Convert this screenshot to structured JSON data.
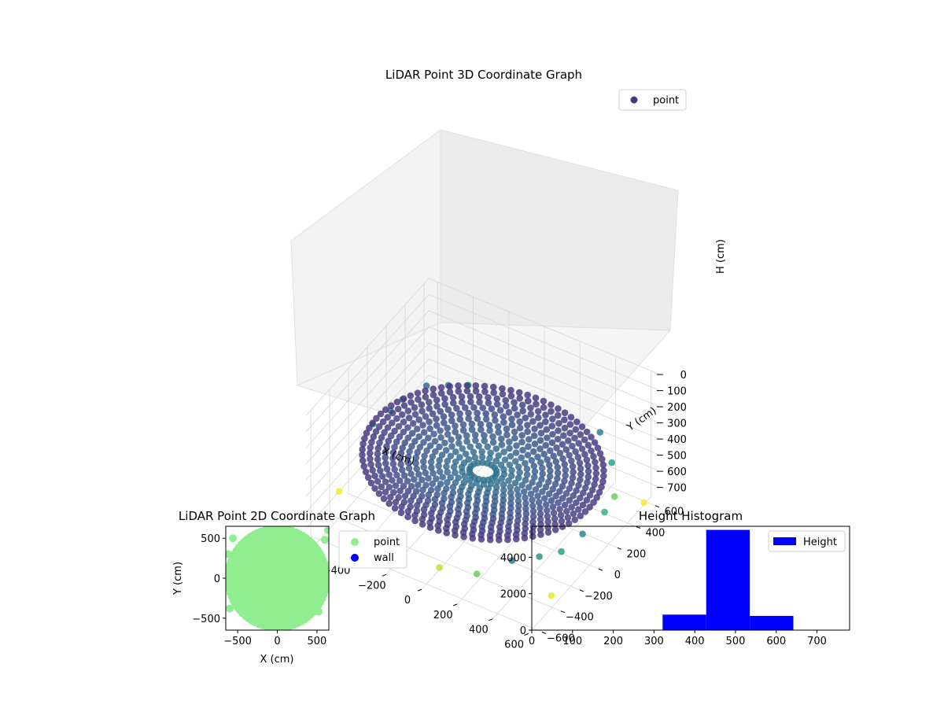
{
  "chart_data": [
    {
      "type": "scatter3d",
      "title": "LiDAR Point 3D Coordinate Graph",
      "xlabel": "X (cm)",
      "ylabel": "Y (cm)",
      "zlabel": "H (cm)",
      "xlim": [
        -650,
        650
      ],
      "ylim": [
        -650,
        650
      ],
      "zlim": [
        0,
        780
      ],
      "z_inverted": true,
      "xticks": [
        -600,
        -400,
        -200,
        0,
        200,
        400,
        600
      ],
      "yticks": [
        -600,
        -400,
        -200,
        0,
        200,
        400,
        600
      ],
      "zticks": [
        0,
        100,
        200,
        300,
        400,
        500,
        600,
        700
      ],
      "legend": {
        "entries": [
          "point"
        ],
        "placement": "upper-right"
      },
      "colormap": "viridis",
      "grid": true,
      "series": [
        {
          "name": "point",
          "ring": {
            "radius_outer": 600,
            "radius_inner_min": 60,
            "height_outer": 420,
            "height_center": 480
          },
          "outliers": [
            {
              "x": -640,
              "y": 40,
              "h": 500
            },
            {
              "x": -600,
              "y": 150,
              "h": 470
            },
            {
              "x": -580,
              "y": 240,
              "h": 450
            },
            {
              "x": -520,
              "y": 380,
              "h": 430
            },
            {
              "x": -450,
              "y": 480,
              "h": 460
            },
            {
              "x": -380,
              "y": 560,
              "h": 480
            },
            {
              "x": 460,
              "y": -560,
              "h": 450
            },
            {
              "x": 540,
              "y": -420,
              "h": 480
            },
            {
              "x": 600,
              "y": -300,
              "h": 500
            },
            {
              "x": 640,
              "y": -150,
              "h": 470
            },
            {
              "x": 620,
              "y": 120,
              "h": 520
            },
            {
              "x": 580,
              "y": 300,
              "h": 560
            },
            {
              "x": 480,
              "y": 460,
              "h": 500
            },
            {
              "x": 350,
              "y": 580,
              "h": 450
            },
            {
              "x": -250,
              "y": -640,
              "h": 560
            },
            {
              "x": 100,
              "y": -650,
              "h": 600
            },
            {
              "x": 640,
              "y": 500,
              "h": 700
            },
            {
              "x": -650,
              "y": -300,
              "h": 700
            },
            {
              "x": 300,
              "y": -630,
              "h": 560
            },
            {
              "x": 650,
              "y": -500,
              "h": 620
            }
          ]
        }
      ]
    },
    {
      "type": "scatter",
      "title": "LiDAR Point 2D Coordinate Graph",
      "xlabel": "X (cm)",
      "ylabel": "Y (cm)",
      "xlim": [
        -650,
        650
      ],
      "ylim": [
        -650,
        650
      ],
      "xticks": [
        -500,
        0,
        500
      ],
      "yticks": [
        -500,
        0,
        500
      ],
      "legend": {
        "entries": [
          "point",
          "wall"
        ],
        "placement": "outside-right"
      },
      "series": [
        {
          "name": "point",
          "color": "#90ee90",
          "shape": "disk",
          "radius": 620
        },
        {
          "name": "wall",
          "color": "#0000ff",
          "values": []
        }
      ]
    },
    {
      "type": "bar",
      "title": "Height Histogram",
      "xlabel": "",
      "ylabel": "",
      "xlim": [
        0,
        780
      ],
      "ylim": [
        0,
        5700
      ],
      "xticks": [
        0,
        100,
        200,
        300,
        400,
        500,
        600,
        700
      ],
      "yticks": [
        0,
        2000,
        4000
      ],
      "legend": {
        "entries": [
          "Height"
        ],
        "placement": "upper-right"
      },
      "series": [
        {
          "name": "Height",
          "color": "#0000ff",
          "bins": [
            {
              "x0": 0,
              "x1": 107,
              "count": 0
            },
            {
              "x0": 107,
              "x1": 214,
              "count": 0
            },
            {
              "x0": 214,
              "x1": 321,
              "count": 0
            },
            {
              "x0": 321,
              "x1": 428,
              "count": 850
            },
            {
              "x0": 428,
              "x1": 535,
              "count": 5500
            },
            {
              "x0": 535,
              "x1": 642,
              "count": 780
            },
            {
              "x0": 642,
              "x1": 749,
              "count": 0
            }
          ]
        }
      ]
    }
  ]
}
